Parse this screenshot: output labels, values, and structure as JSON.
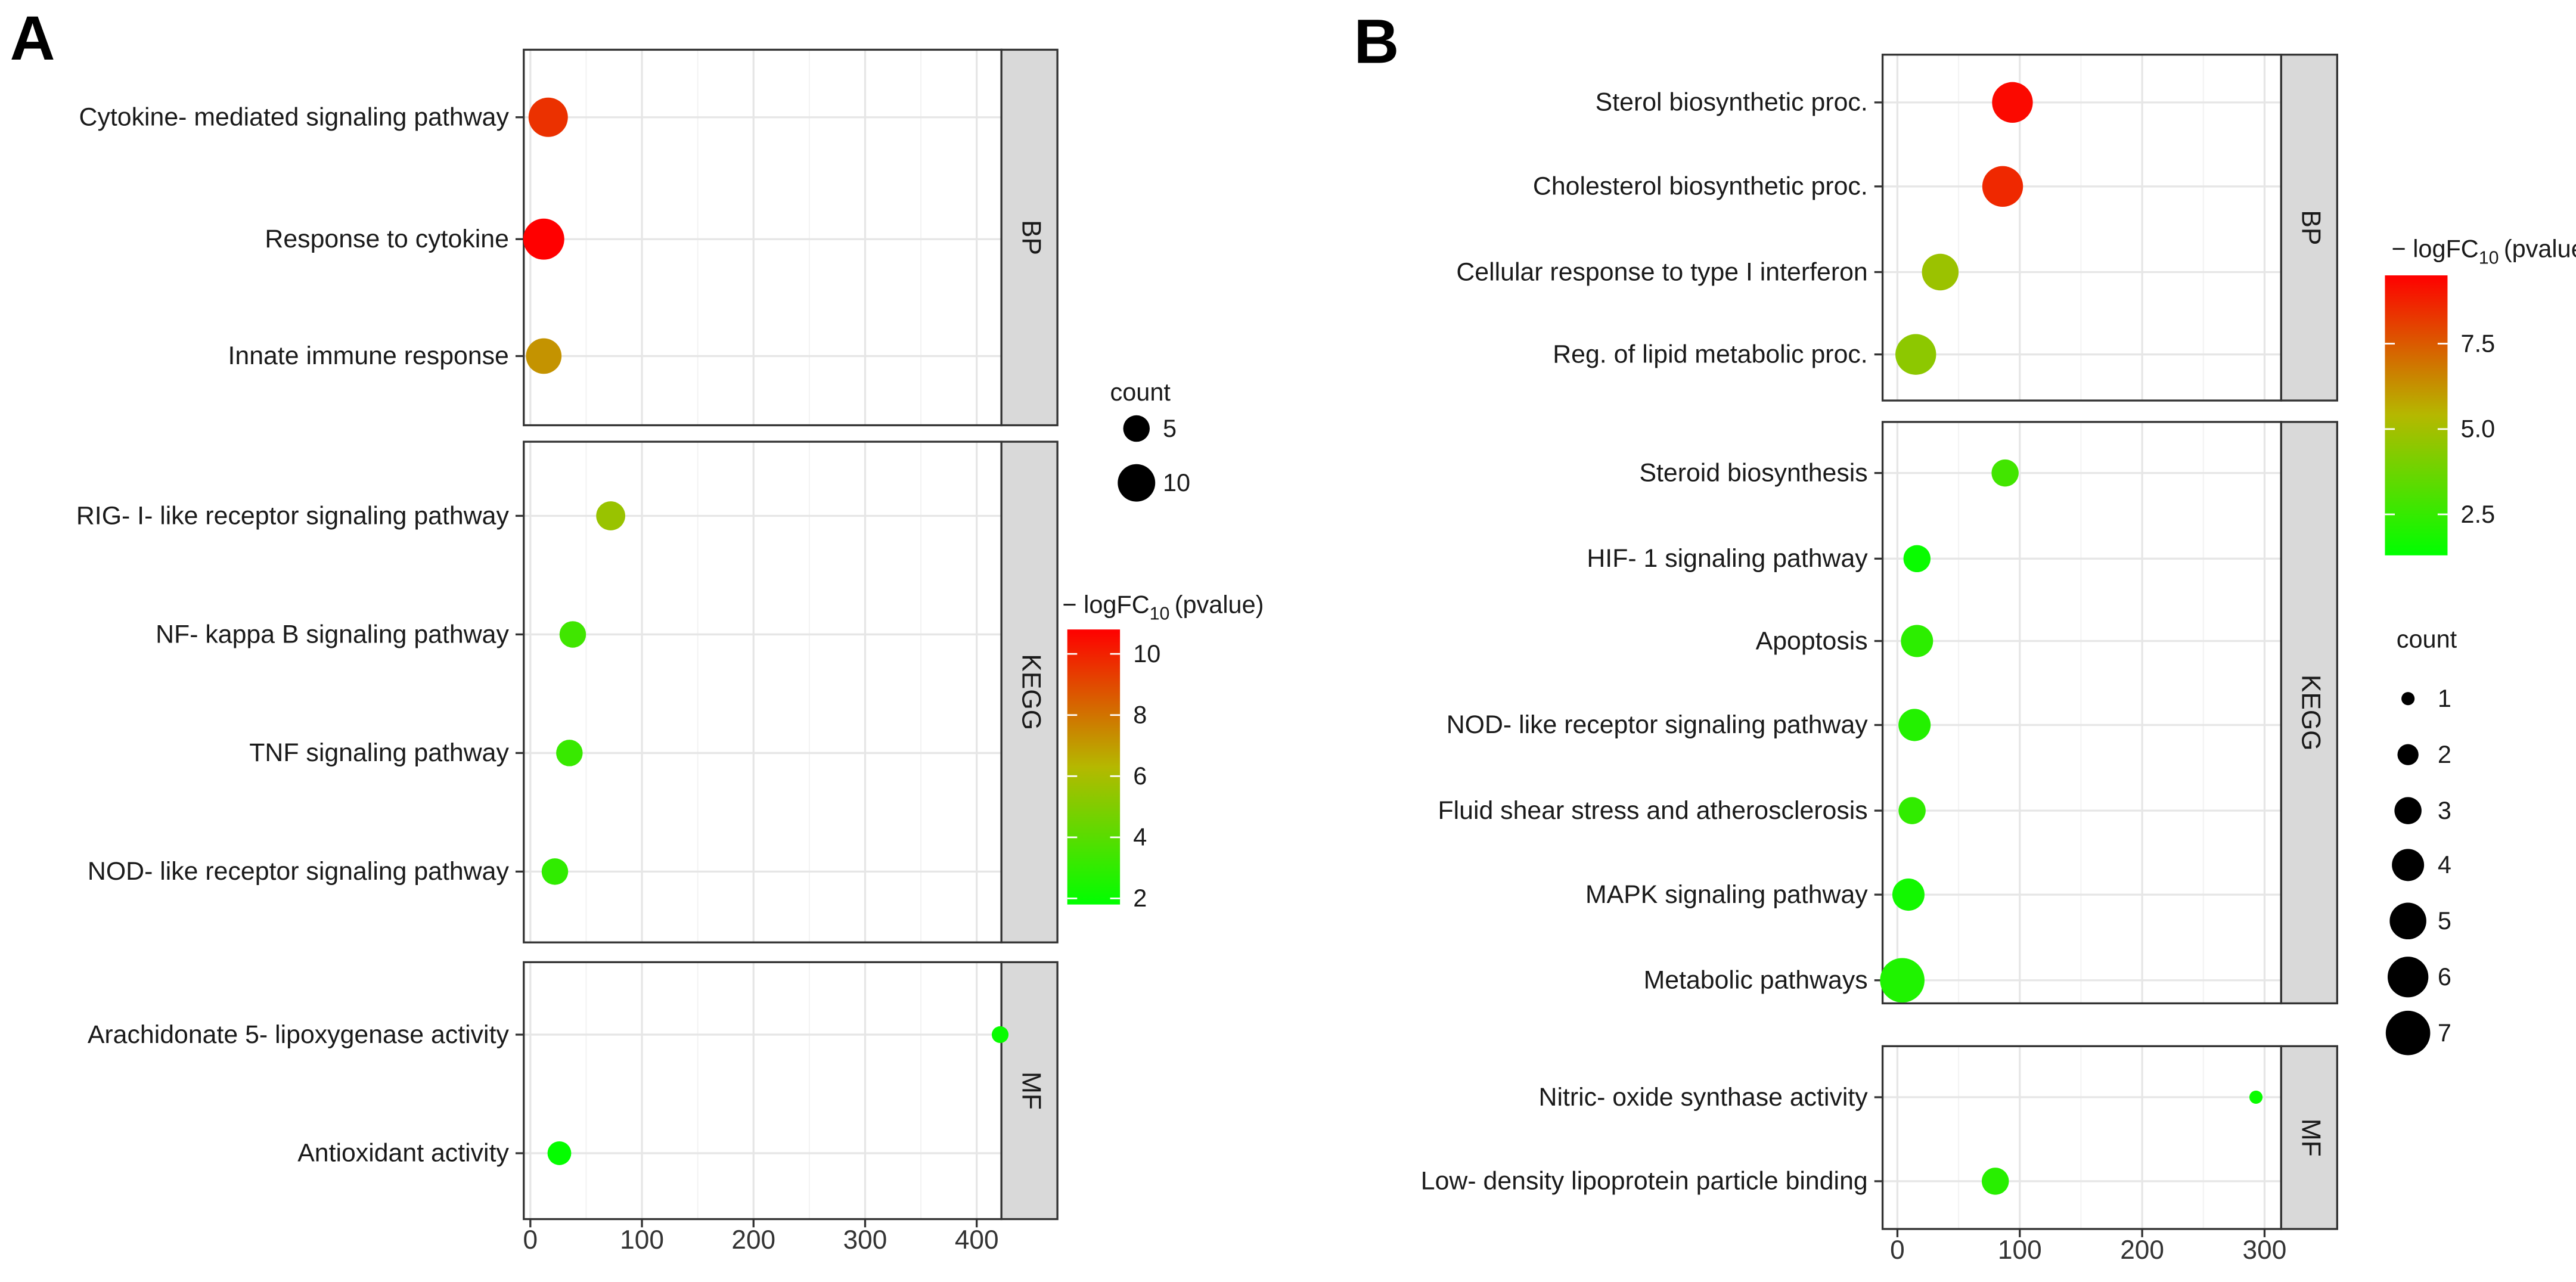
{
  "chart_data": [
    {
      "type": "scatter",
      "panel_label": "A",
      "xlabel": "",
      "ylabel": "",
      "xlim": [
        -5,
        485
      ],
      "xticks": [
        0,
        100,
        200,
        300,
        400
      ],
      "grid": true,
      "facets": [
        {
          "name": "BP",
          "items": [
            {
              "term": "Cytokine- mediated signaling pathway",
              "x": 16,
              "count": 11,
              "logp": 9.6
            },
            {
              "term": "Response to cytokine",
              "x": 12,
              "count": 12,
              "logp": 10.8
            },
            {
              "term": "Innate immune response",
              "x": 12,
              "count": 9,
              "logp": 7.2
            }
          ]
        },
        {
          "name": "KEGG",
          "items": [
            {
              "term": "RIG- I- like receptor signaling pathway",
              "x": 72,
              "count": 6,
              "logp": 5.6
            },
            {
              "term": "NF- kappa B signaling pathway",
              "x": 38,
              "count": 5,
              "logp": 3.4
            },
            {
              "term": "TNF signaling pathway",
              "x": 35,
              "count": 5,
              "logp": 3.2
            },
            {
              "term": "NOD- like receptor signaling pathway",
              "x": 22,
              "count": 5,
              "logp": 3.0
            }
          ]
        },
        {
          "name": "MF",
          "items": [
            {
              "term": "Arachidonate 5- lipoxygenase activity",
              "x": 421,
              "count": 2,
              "logp": 2.0
            },
            {
              "term": "Antioxidant activity",
              "x": 26,
              "count": 4,
              "logp": 1.9
            }
          ]
        }
      ],
      "color_legend": {
        "title_main": "− logFC",
        "title_sub": "10",
        "title_end": "(pvalue)",
        "range": [
          1.8,
          10.8
        ],
        "ticks": [
          2,
          4,
          6,
          8,
          10
        ],
        "tick_labels": [
          "2",
          "4",
          "6",
          "8",
          "10"
        ],
        "low": "#00ff00",
        "mid": "#b5b800",
        "high": "#ff0000"
      },
      "size_legend": {
        "title": "count",
        "values": [
          5,
          10
        ],
        "labels": [
          "5",
          "10"
        ]
      }
    },
    {
      "type": "scatter",
      "panel_label": "B",
      "xlabel": "",
      "ylabel": "",
      "xlim": [
        -5,
        312
      ],
      "xticks": [
        0,
        100,
        200,
        300
      ],
      "grid": true,
      "facets": [
        {
          "name": "BP",
          "items": [
            {
              "term": "Sterol biosynthetic proc.",
              "x": 94,
              "count": 6,
              "logp": 9.3
            },
            {
              "term": "Cholesterol biosynthetic proc.",
              "x": 86,
              "count": 6,
              "logp": 8.6
            },
            {
              "term": "Cellular response to type I interferon",
              "x": 35,
              "count": 5,
              "logp": 4.8
            },
            {
              "term": "Reg. of lipid metabolic proc.",
              "x": 15,
              "count": 6,
              "logp": 4.5
            }
          ]
        },
        {
          "name": "KEGG",
          "items": [
            {
              "term": "Steroid biosynthesis",
              "x": 88,
              "count": 3,
              "logp": 2.8
            },
            {
              "term": "HIF- 1 signaling pathway",
              "x": 16,
              "count": 3,
              "logp": 1.5
            },
            {
              "term": "Apoptosis",
              "x": 16,
              "count": 4,
              "logp": 2.3
            },
            {
              "term": "NOD- like receptor signaling pathway",
              "x": 14,
              "count": 4,
              "logp": 2.1
            },
            {
              "term": "Fluid shear stress and atherosclerosis",
              "x": 12,
              "count": 3,
              "logp": 2.4
            },
            {
              "term": "MAPK signaling pathway",
              "x": 9,
              "count": 4,
              "logp": 1.7
            },
            {
              "term": "Metabolic pathways",
              "x": 4,
              "count": 7,
              "logp": 2.0
            }
          ]
        },
        {
          "name": "MF",
          "items": [
            {
              "term": "Nitric- oxide synthase activity",
              "x": 293,
              "count": 1,
              "logp": 1.5
            },
            {
              "term": "Low- density lipoprotein particle binding",
              "x": 80,
              "count": 3,
              "logp": 2.2
            }
          ]
        }
      ],
      "color_legend": {
        "title_main": "− logFC",
        "title_sub": "10",
        "title_end": "(pvalue)",
        "range": [
          1.3,
          9.5
        ],
        "ticks": [
          2.5,
          5.0,
          7.5
        ],
        "tick_labels": [
          "2.5",
          "5.0",
          "7.5"
        ],
        "low": "#00ff00",
        "mid": "#b5b800",
        "high": "#ff0000"
      },
      "size_legend": {
        "title": "count",
        "values": [
          1,
          2,
          3,
          4,
          5,
          6,
          7
        ],
        "labels": [
          "1",
          "2",
          "3",
          "4",
          "5",
          "6",
          "7"
        ]
      }
    }
  ]
}
